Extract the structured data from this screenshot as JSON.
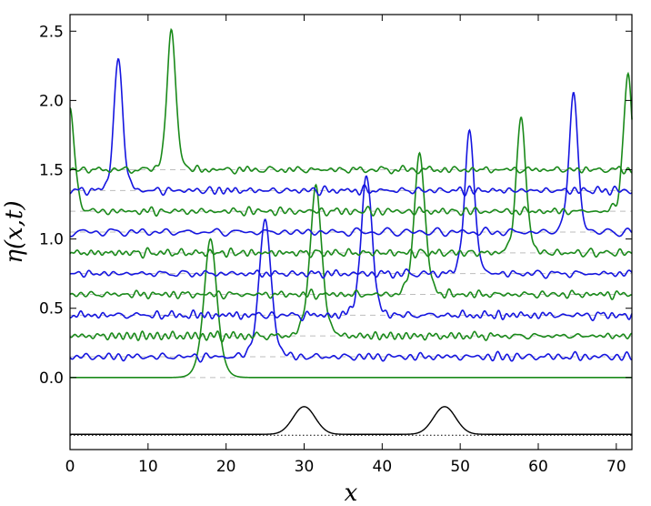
{
  "chart_data": {
    "type": "line",
    "xlabel": "x",
    "ylabel": "η(x,t)",
    "xlim": [
      0,
      72
    ],
    "ylim": [
      -0.52,
      2.62
    ],
    "x_ticks": [
      "0",
      "10",
      "20",
      "30",
      "40",
      "50",
      "60",
      "70"
    ],
    "y_ticks": [
      "0.0",
      "0.5",
      "1.0",
      "1.5",
      "2.0",
      "2.5"
    ],
    "baselines_dashed": [
      0.0,
      0.15,
      0.3,
      0.45,
      0.6,
      0.75,
      0.9,
      1.05,
      1.2,
      1.35,
      1.5
    ],
    "series": [
      {
        "color": "#1a8a1a",
        "offset": 0.0,
        "peak_x": 18.0,
        "peak_y": 1.0,
        "width": 1.1,
        "noise": 0.0
      },
      {
        "color": "#1515e0",
        "offset": 0.15,
        "peak_x": 25.0,
        "peak_y": 1.14,
        "width": 1.0,
        "noise": 0.025
      },
      {
        "color": "#1a8a1a",
        "offset": 0.3,
        "peak_x": 31.5,
        "peak_y": 1.37,
        "width": 1.0,
        "noise": 0.025
      },
      {
        "color": "#1515e0",
        "offset": 0.45,
        "peak_x": 38.0,
        "peak_y": 1.47,
        "width": 0.9,
        "noise": 0.025
      },
      {
        "color": "#1a8a1a",
        "offset": 0.6,
        "peak_x": 44.8,
        "peak_y": 1.62,
        "width": 0.9,
        "noise": 0.025
      },
      {
        "color": "#1515e0",
        "offset": 0.75,
        "peak_x": 51.2,
        "peak_y": 1.79,
        "width": 0.8,
        "noise": 0.025
      },
      {
        "color": "#1a8a1a",
        "offset": 0.9,
        "peak_x": 57.8,
        "peak_y": 1.88,
        "width": 0.8,
        "noise": 0.025
      },
      {
        "color": "#1515e0",
        "offset": 1.05,
        "peak_x": 64.5,
        "peak_y": 2.05,
        "width": 0.75,
        "noise": 0.025
      },
      {
        "color": "#1a8a1a",
        "offset": 1.2,
        "peak_x": 71.5,
        "peak_y": 2.2,
        "width": 0.75,
        "noise": 0.025,
        "wrap_peak_y": 1.95
      },
      {
        "color": "#1515e0",
        "offset": 1.35,
        "peak_x": 6.2,
        "peak_y": 2.3,
        "width": 0.75,
        "noise": 0.025
      },
      {
        "color": "#1a8a1a",
        "offset": 1.5,
        "peak_x": 13.0,
        "peak_y": 2.5,
        "width": 0.75,
        "noise": 0.025
      }
    ],
    "bathymetry": {
      "color": "#000000",
      "base_y": -0.41,
      "bumps": [
        {
          "x": 30.0,
          "height": 0.2,
          "width": 2.0
        },
        {
          "x": 48.0,
          "height": 0.2,
          "width": 2.0
        }
      ],
      "dotted_level": -0.41
    }
  }
}
